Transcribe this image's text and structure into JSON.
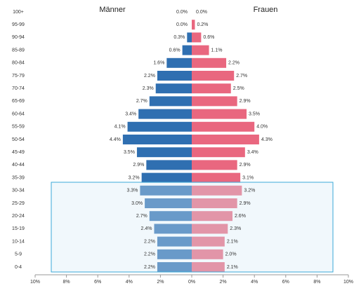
{
  "chart_data": {
    "type": "pyramid",
    "categories": [
      "100+",
      "95-99",
      "90-94",
      "85-89",
      "80-84",
      "75-79",
      "70-74",
      "65-69",
      "60-64",
      "55-59",
      "50-54",
      "45-49",
      "40-44",
      "35-39",
      "30-34",
      "25-29",
      "20-24",
      "15-19",
      "10-14",
      "5-9",
      "0-4"
    ],
    "series": [
      {
        "name": "Männer",
        "color": "#2f6fb1",
        "side": "left",
        "values": [
          0.0,
          0.0,
          0.3,
          0.6,
          1.6,
          2.2,
          2.3,
          2.7,
          3.4,
          4.1,
          4.4,
          3.5,
          2.9,
          3.2,
          3.3,
          3.0,
          2.7,
          2.4,
          2.2,
          2.2,
          2.2
        ],
        "value_labels": [
          "0.0%",
          "0.0%",
          "0.3%",
          "0.6%",
          "1.6%",
          "2.2%",
          "2.3%",
          "2.7%",
          "3.4%",
          "4.1%",
          "4.4%",
          "3.5%",
          "2.9%",
          "3.2%",
          "3.3%",
          "3.0%",
          "2.7%",
          "2.4%",
          "2.2%",
          "2.2%",
          "2.2%"
        ]
      },
      {
        "name": "Frauen",
        "color": "#e9677f",
        "side": "right",
        "values": [
          0.0,
          0.2,
          0.6,
          1.1,
          2.2,
          2.7,
          2.5,
          2.9,
          3.5,
          4.0,
          4.3,
          3.4,
          2.9,
          3.1,
          3.2,
          2.9,
          2.6,
          2.3,
          2.1,
          2.0,
          2.1
        ],
        "value_labels": [
          "0.0%",
          "0.2%",
          "0.6%",
          "1.1%",
          "2.2%",
          "2.7%",
          "2.5%",
          "2.9%",
          "3.5%",
          "4.0%",
          "4.3%",
          "3.4%",
          "2.9%",
          "3.1%",
          "3.2%",
          "2.9%",
          "2.6%",
          "2.3%",
          "2.1%",
          "2.0%",
          "2.1%"
        ]
      }
    ],
    "xlim": [
      -10,
      10
    ],
    "xticks": [
      {
        "value": -10,
        "label": "10%"
      },
      {
        "value": -8,
        "label": "8%"
      },
      {
        "value": -6,
        "label": "6%"
      },
      {
        "value": -4,
        "label": "4%"
      },
      {
        "value": -2,
        "label": "2%"
      },
      {
        "value": 0,
        "label": "0%"
      },
      {
        "value": 2,
        "label": "2%"
      },
      {
        "value": 4,
        "label": "4%"
      },
      {
        "value": 6,
        "label": "6%"
      },
      {
        "value": 8,
        "label": "8%"
      },
      {
        "value": 10,
        "label": "10%"
      }
    ]
  }
}
